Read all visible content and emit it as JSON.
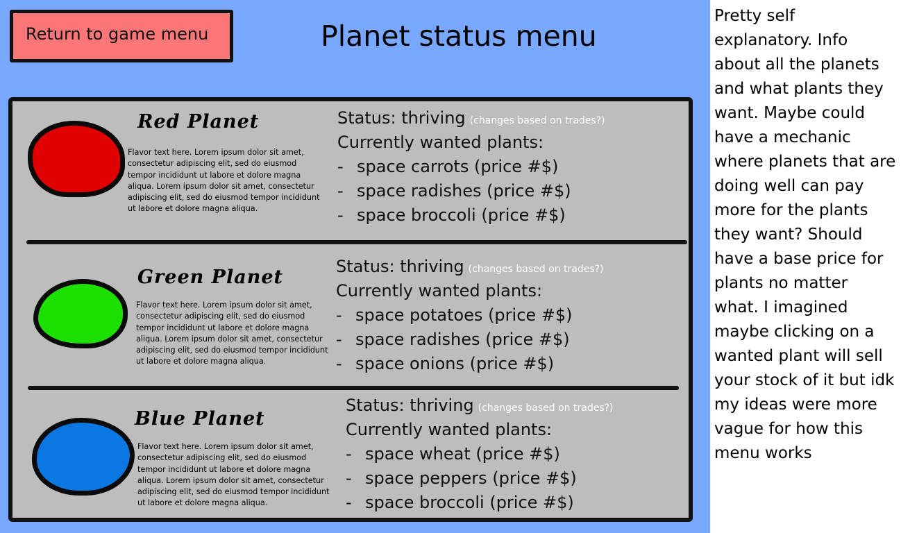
{
  "header": {
    "return_button_label": "Return to game menu",
    "title": "Planet status menu"
  },
  "planets": [
    {
      "name": "Red Planet",
      "color": "#e00000",
      "flavor": "Flavor text here. Lorem ipsum dolor sit amet, consectetur adipiscing elit, sed do eiusmod tempor incididunt ut labore et dolore magna aliqua. Lorem ipsum dolor sit amet, consectetur adipiscing elit, sed do eiusmod tempor incididunt ut labore et dolore magna aliqua.",
      "status_label": "Status: thriving",
      "status_note": "(changes based on trades?)",
      "wanted_title": "Currently wanted plants:",
      "dash": "-",
      "plants": [
        "space carrots (price #$)",
        "space radishes (price #$)",
        "space broccoli (price #$)"
      ]
    },
    {
      "name": "Green Planet",
      "color": "#1ee000",
      "flavor": "Flavor text here. Lorem ipsum dolor sit amet, consectetur adipiscing elit, sed do eiusmod tempor incididunt ut labore et dolore magna aliqua. Lorem ipsum dolor sit amet, consectetur adipiscing elit, sed do eiusmod tempor incididunt ut labore et dolore magna aliqua.",
      "status_label": "Status: thriving",
      "status_note": "(changes based on trades?)",
      "wanted_title": "Currently wanted plants:",
      "dash": "-",
      "plants": [
        "space potatoes (price #$)",
        "space radishes (price #$)",
        "space onions (price #$)"
      ]
    },
    {
      "name": "Blue Planet",
      "color": "#0a78e0",
      "flavor": "Flavor text here. Lorem ipsum dolor sit amet, consectetur adipiscing elit, sed do eiusmod tempor incididunt ut labore et dolore magna aliqua. Lorem ipsum dolor sit amet, consectetur adipiscing elit, sed do eiusmod tempor incididunt ut labore et dolore magna aliqua.",
      "status_label": "Status: thriving",
      "status_note": "(changes based on trades?)",
      "wanted_title": "Currently wanted plants:",
      "dash": "-",
      "plants": [
        "space wheat (price #$)",
        "space peppers (price #$)",
        "space broccoli (price #$)"
      ]
    }
  ],
  "notes": "Pretty self explanatory. Info about all the planets and what plants they want. Maybe could have a mechanic where planets that are doing well can pay more for the plants they want? Should have a base price for plants no matter what. I imagined maybe clicking on a wanted plant will sell your stock of it but idk my ideas were more vague for how this menu works",
  "colors": {
    "background": "#78a8ff",
    "panel": "#bdbdbd",
    "return_button": "#fb7676",
    "outline": "#111111"
  }
}
